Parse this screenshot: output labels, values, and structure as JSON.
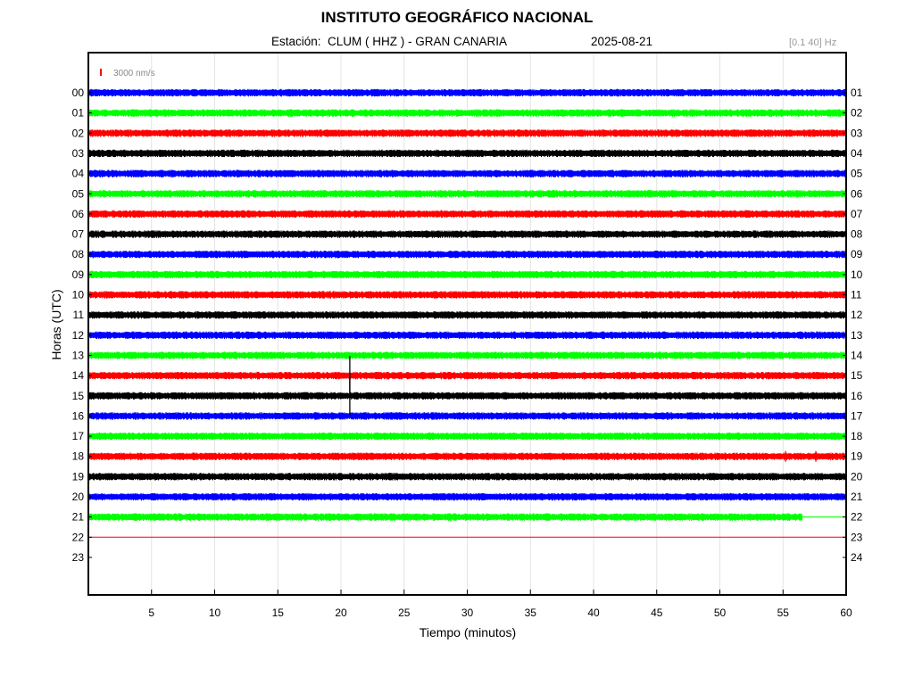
{
  "header": {
    "title": "INSTITUTO GEOGRÁFICO NACIONAL",
    "station_label": "Estación:  CLUM ( HHZ ) - GRAN CANARIA",
    "date": "2025-08-21",
    "filter": "[0.1 40] Hz"
  },
  "chart_data": {
    "type": "line",
    "title": "INSTITUTO GEOGRÁFICO NACIONAL",
    "xlabel": "Tiempo (minutos)",
    "ylabel": "Horas (UTC)",
    "xlim": [
      0,
      60
    ],
    "x_ticks": [
      5,
      10,
      15,
      20,
      25,
      30,
      35,
      40,
      45,
      50,
      55,
      60
    ],
    "grid": true,
    "scale_bar": {
      "label": "3000 nm/s",
      "color": "#ff0000"
    },
    "left_hour_labels": [
      "00",
      "01",
      "02",
      "03",
      "04",
      "05",
      "06",
      "07",
      "08",
      "09",
      "10",
      "11",
      "12",
      "13",
      "14",
      "15",
      "16",
      "17",
      "18",
      "19",
      "20",
      "21",
      "22",
      "23"
    ],
    "right_hour_labels": [
      "01",
      "02",
      "03",
      "04",
      "05",
      "06",
      "07",
      "08",
      "09",
      "10",
      "11",
      "12",
      "13",
      "14",
      "15",
      "16",
      "17",
      "18",
      "19",
      "20",
      "21",
      "22",
      "23",
      "24"
    ],
    "color_cycle": [
      "#0000ff",
      "#00ff00",
      "#ff0000",
      "#000000"
    ],
    "traces": [
      {
        "hour": "00",
        "end_minute": 60
      },
      {
        "hour": "01",
        "end_minute": 60
      },
      {
        "hour": "02",
        "end_minute": 60
      },
      {
        "hour": "03",
        "end_minute": 60
      },
      {
        "hour": "04",
        "end_minute": 60
      },
      {
        "hour": "05",
        "end_minute": 60
      },
      {
        "hour": "06",
        "end_minute": 60
      },
      {
        "hour": "07",
        "end_minute": 60
      },
      {
        "hour": "08",
        "end_minute": 60
      },
      {
        "hour": "09",
        "end_minute": 60
      },
      {
        "hour": "10",
        "end_minute": 60
      },
      {
        "hour": "11",
        "end_minute": 60
      },
      {
        "hour": "12",
        "end_minute": 60
      },
      {
        "hour": "13",
        "end_minute": 60
      },
      {
        "hour": "14",
        "end_minute": 60
      },
      {
        "hour": "15",
        "end_minute": 60
      },
      {
        "hour": "16",
        "end_minute": 60
      },
      {
        "hour": "17",
        "end_minute": 60
      },
      {
        "hour": "18",
        "end_minute": 60
      },
      {
        "hour": "19",
        "end_minute": 60
      },
      {
        "hour": "20",
        "end_minute": 60
      },
      {
        "hour": "21",
        "end_minute": 56.5
      },
      {
        "hour": "22",
        "end_minute": 60,
        "flat": true
      }
    ],
    "events": [
      {
        "hour": "14",
        "minute": 20.7
      },
      {
        "hour": "15",
        "minute": 20.7
      },
      {
        "hour": "18",
        "minute": 55.2
      },
      {
        "hour": "18",
        "minute": 57.6
      }
    ]
  }
}
